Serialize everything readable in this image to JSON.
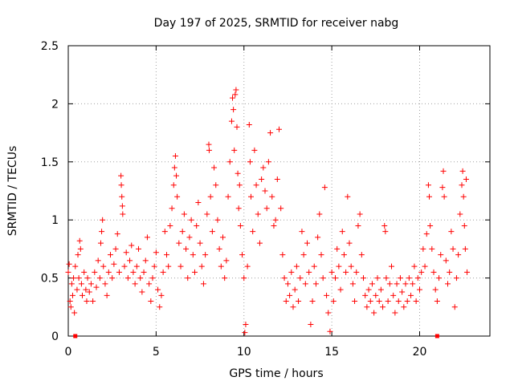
{
  "chart_data": {
    "type": "scatter",
    "title": "Day 197 of 2025, SRMTID for receiver nabg",
    "xlabel": "GPS time / hours",
    "ylabel": "SRMTID / TECUs",
    "xlim": [
      0,
      24
    ],
    "ylim": [
      0,
      2.5
    ],
    "xticks": [
      0,
      5,
      10,
      15,
      20
    ],
    "xtick_labels": [
      "0",
      "5",
      "10",
      "15",
      "20"
    ],
    "yticks": [
      0,
      0.5,
      1,
      1.5,
      2,
      2.5
    ],
    "ytick_labels": [
      "0",
      "0.5",
      "1",
      "1.5",
      "2",
      "2.5"
    ],
    "grid": true,
    "marker": "+",
    "color": "#ff0000",
    "series": [
      {
        "name": "SRMTID",
        "points": [
          [
            0.0,
            0.55
          ],
          [
            0.05,
            0.62
          ],
          [
            0.1,
            0.3
          ],
          [
            0.15,
            0.25
          ],
          [
            0.2,
            0.45
          ],
          [
            0.25,
            0.35
          ],
          [
            0.3,
            0.5
          ],
          [
            0.35,
            0.2
          ],
          [
            0.4,
            0.6
          ],
          [
            0.5,
            0.4
          ],
          [
            0.55,
            0.7
          ],
          [
            0.6,
            0.5
          ],
          [
            0.65,
            0.82
          ],
          [
            0.7,
            0.75
          ],
          [
            0.75,
            0.45
          ],
          [
            0.8,
            0.35
          ],
          [
            0.9,
            0.55
          ],
          [
            1.0,
            0.4
          ],
          [
            1.05,
            0.3
          ],
          [
            1.1,
            0.5
          ],
          [
            1.2,
            0.38
          ],
          [
            1.3,
            0.45
          ],
          [
            1.4,
            0.3
          ],
          [
            1.5,
            0.55
          ],
          [
            1.6,
            0.42
          ],
          [
            1.7,
            0.65
          ],
          [
            1.8,
            0.5
          ],
          [
            1.85,
            0.8
          ],
          [
            1.9,
            0.9
          ],
          [
            1.95,
            1.0
          ],
          [
            2.0,
            0.6
          ],
          [
            2.1,
            0.45
          ],
          [
            2.2,
            0.35
          ],
          [
            2.3,
            0.55
          ],
          [
            2.4,
            0.7
          ],
          [
            2.5,
            0.5
          ],
          [
            2.6,
            0.62
          ],
          [
            2.7,
            0.75
          ],
          [
            2.8,
            0.88
          ],
          [
            2.9,
            0.55
          ],
          [
            3.0,
            1.38
          ],
          [
            3.02,
            1.3
          ],
          [
            3.05,
            1.2
          ],
          [
            3.08,
            1.12
          ],
          [
            3.1,
            1.05
          ],
          [
            3.2,
            0.6
          ],
          [
            3.3,
            0.72
          ],
          [
            3.4,
            0.5
          ],
          [
            3.5,
            0.65
          ],
          [
            3.6,
            0.78
          ],
          [
            3.7,
            0.55
          ],
          [
            3.8,
            0.45
          ],
          [
            3.9,
            0.6
          ],
          [
            4.0,
            0.75
          ],
          [
            4.1,
            0.5
          ],
          [
            4.2,
            0.38
          ],
          [
            4.3,
            0.55
          ],
          [
            4.4,
            0.65
          ],
          [
            4.5,
            0.85
          ],
          [
            4.6,
            0.45
          ],
          [
            4.7,
            0.3
          ],
          [
            4.8,
            0.5
          ],
          [
            4.9,
            0.6
          ],
          [
            5.0,
            0.72
          ],
          [
            5.1,
            0.4
          ],
          [
            5.2,
            0.25
          ],
          [
            5.3,
            0.35
          ],
          [
            5.4,
            0.55
          ],
          [
            5.5,
            0.9
          ],
          [
            5.6,
            0.7
          ],
          [
            5.7,
            0.6
          ],
          [
            5.8,
            0.95
          ],
          [
            5.9,
            1.1
          ],
          [
            6.0,
            1.3
          ],
          [
            6.05,
            1.45
          ],
          [
            6.1,
            1.55
          ],
          [
            6.15,
            1.38
          ],
          [
            6.2,
            1.2
          ],
          [
            6.3,
            0.8
          ],
          [
            6.4,
            0.6
          ],
          [
            6.5,
            0.9
          ],
          [
            6.6,
            1.05
          ],
          [
            6.7,
            0.75
          ],
          [
            6.8,
            0.5
          ],
          [
            6.9,
            0.85
          ],
          [
            7.0,
            1.0
          ],
          [
            7.1,
            0.7
          ],
          [
            7.2,
            0.55
          ],
          [
            7.3,
            0.95
          ],
          [
            7.4,
            1.15
          ],
          [
            7.5,
            0.8
          ],
          [
            7.6,
            0.6
          ],
          [
            7.7,
            0.45
          ],
          [
            7.8,
            0.7
          ],
          [
            7.9,
            1.05
          ],
          [
            8.0,
            1.65
          ],
          [
            8.02,
            1.6
          ],
          [
            8.1,
            1.2
          ],
          [
            8.2,
            0.9
          ],
          [
            8.3,
            1.45
          ],
          [
            8.4,
            1.3
          ],
          [
            8.5,
            1.0
          ],
          [
            8.6,
            0.75
          ],
          [
            8.7,
            0.6
          ],
          [
            8.8,
            0.85
          ],
          [
            8.9,
            0.5
          ],
          [
            9.0,
            0.65
          ],
          [
            9.1,
            1.2
          ],
          [
            9.2,
            1.5
          ],
          [
            9.3,
            1.85
          ],
          [
            9.35,
            2.05
          ],
          [
            9.4,
            1.95
          ],
          [
            9.45,
            1.6
          ],
          [
            9.5,
            2.08
          ],
          [
            9.55,
            2.12
          ],
          [
            9.6,
            1.8
          ],
          [
            9.65,
            1.4
          ],
          [
            9.7,
            1.1
          ],
          [
            9.75,
            1.3
          ],
          [
            9.8,
            0.95
          ],
          [
            9.9,
            0.7
          ],
          [
            10.0,
            0.5
          ],
          [
            10.05,
            0.03
          ],
          [
            10.1,
            0.1
          ],
          [
            10.2,
            0.6
          ],
          [
            10.3,
            1.82
          ],
          [
            10.35,
            1.5
          ],
          [
            10.4,
            1.2
          ],
          [
            10.5,
            0.9
          ],
          [
            10.6,
            1.6
          ],
          [
            10.7,
            1.3
          ],
          [
            10.8,
            1.05
          ],
          [
            10.9,
            0.8
          ],
          [
            11.0,
            1.35
          ],
          [
            11.1,
            1.45
          ],
          [
            11.2,
            1.25
          ],
          [
            11.3,
            1.1
          ],
          [
            11.4,
            1.5
          ],
          [
            11.5,
            1.75
          ],
          [
            11.6,
            1.2
          ],
          [
            11.7,
            0.95
          ],
          [
            11.8,
            1.0
          ],
          [
            11.9,
            1.35
          ],
          [
            12.0,
            1.78
          ],
          [
            12.1,
            1.1
          ],
          [
            12.2,
            0.7
          ],
          [
            12.3,
            0.5
          ],
          [
            12.4,
            0.3
          ],
          [
            12.5,
            0.45
          ],
          [
            12.6,
            0.35
          ],
          [
            12.7,
            0.55
          ],
          [
            12.8,
            0.25
          ],
          [
            12.9,
            0.4
          ],
          [
            13.0,
            0.6
          ],
          [
            13.1,
            0.3
          ],
          [
            13.2,
            0.5
          ],
          [
            13.3,
            0.9
          ],
          [
            13.4,
            0.7
          ],
          [
            13.5,
            0.45
          ],
          [
            13.6,
            0.8
          ],
          [
            13.7,
            0.55
          ],
          [
            13.8,
            0.1
          ],
          [
            13.9,
            0.3
          ],
          [
            14.0,
            0.6
          ],
          [
            14.1,
            0.45
          ],
          [
            14.2,
            0.85
          ],
          [
            14.3,
            1.05
          ],
          [
            14.4,
            0.7
          ],
          [
            14.5,
            0.5
          ],
          [
            14.6,
            1.28
          ],
          [
            14.7,
            0.35
          ],
          [
            14.8,
            0.2
          ],
          [
            14.9,
            0.04
          ],
          [
            15.0,
            0.55
          ],
          [
            15.1,
            0.3
          ],
          [
            15.2,
            0.5
          ],
          [
            15.3,
            0.75
          ],
          [
            15.4,
            0.6
          ],
          [
            15.5,
            0.4
          ],
          [
            15.6,
            0.9
          ],
          [
            15.7,
            0.7
          ],
          [
            15.8,
            0.55
          ],
          [
            15.9,
            1.2
          ],
          [
            16.0,
            0.8
          ],
          [
            16.1,
            0.6
          ],
          [
            16.2,
            0.45
          ],
          [
            16.3,
            0.3
          ],
          [
            16.4,
            0.55
          ],
          [
            16.5,
            0.95
          ],
          [
            16.6,
            1.05
          ],
          [
            16.7,
            0.7
          ],
          [
            16.8,
            0.5
          ],
          [
            16.9,
            0.35
          ],
          [
            17.0,
            0.25
          ],
          [
            17.1,
            0.4
          ],
          [
            17.2,
            0.3
          ],
          [
            17.3,
            0.45
          ],
          [
            17.4,
            0.2
          ],
          [
            17.5,
            0.35
          ],
          [
            17.6,
            0.5
          ],
          [
            17.7,
            0.3
          ],
          [
            17.8,
            0.4
          ],
          [
            17.9,
            0.25
          ],
          [
            18.0,
            0.95
          ],
          [
            18.05,
            0.9
          ],
          [
            18.1,
            0.5
          ],
          [
            18.2,
            0.3
          ],
          [
            18.3,
            0.45
          ],
          [
            18.4,
            0.6
          ],
          [
            18.5,
            0.35
          ],
          [
            18.6,
            0.2
          ],
          [
            18.7,
            0.45
          ],
          [
            18.8,
            0.3
          ],
          [
            18.9,
            0.5
          ],
          [
            19.0,
            0.38
          ],
          [
            19.1,
            0.25
          ],
          [
            19.2,
            0.45
          ],
          [
            19.3,
            0.3
          ],
          [
            19.4,
            0.5
          ],
          [
            19.5,
            0.35
          ],
          [
            19.6,
            0.45
          ],
          [
            19.7,
            0.6
          ],
          [
            19.8,
            0.3
          ],
          [
            19.9,
            0.5
          ],
          [
            20.0,
            0.4
          ],
          [
            20.1,
            0.55
          ],
          [
            20.2,
            0.75
          ],
          [
            20.3,
            0.6
          ],
          [
            20.4,
            0.88
          ],
          [
            20.5,
            1.3
          ],
          [
            20.55,
            1.2
          ],
          [
            20.6,
            0.95
          ],
          [
            20.7,
            0.75
          ],
          [
            20.8,
            0.55
          ],
          [
            20.9,
            0.4
          ],
          [
            21.0,
            0.3
          ],
          [
            21.1,
            0.5
          ],
          [
            21.2,
            0.7
          ],
          [
            21.3,
            1.28
          ],
          [
            21.35,
            1.42
          ],
          [
            21.4,
            1.2
          ],
          [
            21.5,
            0.65
          ],
          [
            21.6,
            0.45
          ],
          [
            21.7,
            0.55
          ],
          [
            21.8,
            0.9
          ],
          [
            21.9,
            0.75
          ],
          [
            22.0,
            0.25
          ],
          [
            22.1,
            0.5
          ],
          [
            22.2,
            0.7
          ],
          [
            22.3,
            1.05
          ],
          [
            22.4,
            1.3
          ],
          [
            22.45,
            1.42
          ],
          [
            22.5,
            1.2
          ],
          [
            22.55,
            0.95
          ],
          [
            22.6,
            0.75
          ],
          [
            22.65,
            1.35
          ],
          [
            22.7,
            0.55
          ]
        ]
      }
    ],
    "markers_on_axis": [
      0.4,
      21.0
    ]
  }
}
